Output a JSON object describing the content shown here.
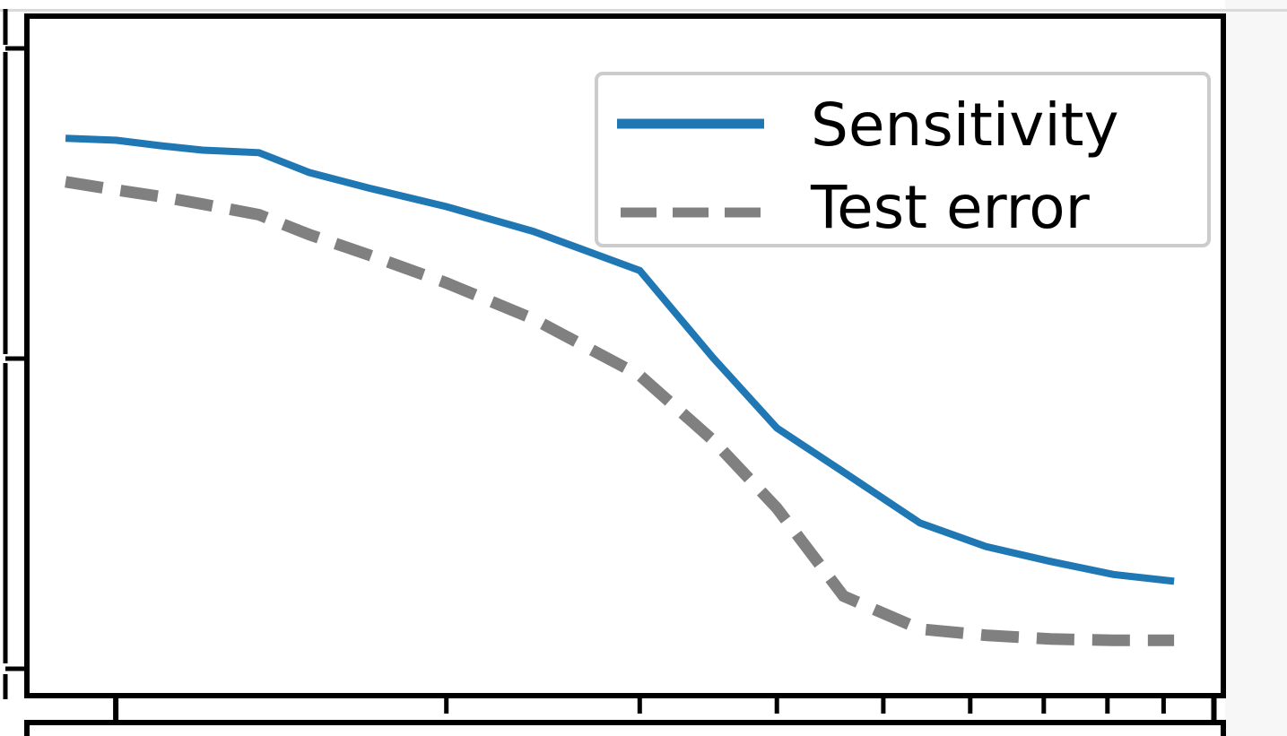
{
  "chart_data": {
    "type": "line",
    "title": "",
    "xlabel": "",
    "ylabel": "",
    "xscale": "log",
    "xlim": [
      0.83,
      10.2
    ],
    "ylim": [
      0.0,
      1.0
    ],
    "grid": false,
    "legend": {
      "placement": "top-right"
    },
    "x": [
      0.9,
      1.0,
      1.1,
      1.2,
      1.35,
      1.5,
      1.7,
      2.0,
      2.4,
      3.0,
      3.5,
      4.0,
      4.6,
      5.4,
      6.2,
      7.1,
      8.1,
      9.2
    ],
    "series": [
      {
        "name": "Sensitivity",
        "color": "#1f77b4",
        "style": "solid",
        "values": [
          0.855,
          0.852,
          0.843,
          0.836,
          0.832,
          0.8,
          0.775,
          0.745,
          0.705,
          0.642,
          0.501,
          0.388,
          0.317,
          0.235,
          0.197,
          0.173,
          0.152,
          0.141
        ]
      },
      {
        "name": "Test error",
        "color": "#808080",
        "style": "dashed",
        "values": [
          0.785,
          0.772,
          0.761,
          0.749,
          0.732,
          0.7,
          0.667,
          0.622,
          0.564,
          0.473,
          0.368,
          0.259,
          0.117,
          0.064,
          0.054,
          0.048,
          0.046,
          0.046
        ]
      }
    ]
  }
}
